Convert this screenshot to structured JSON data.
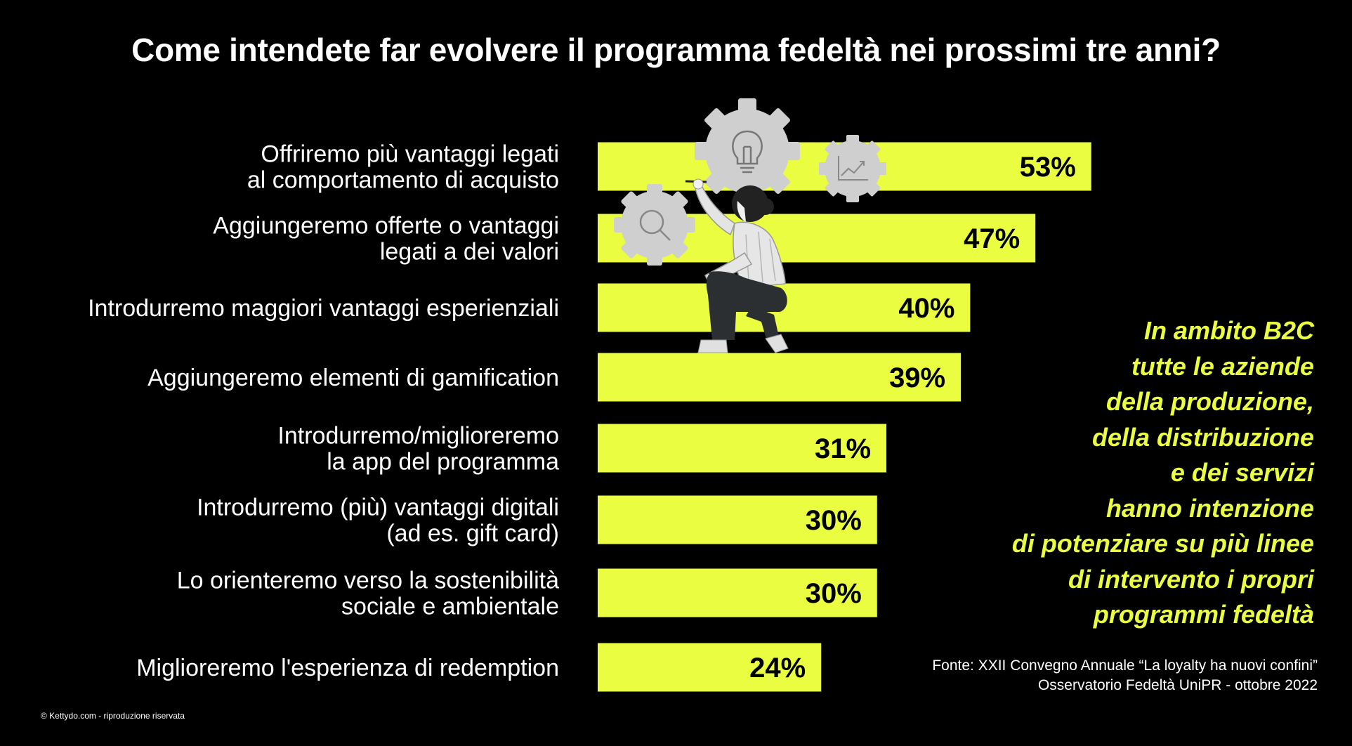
{
  "chart_data": {
    "type": "bar",
    "orientation": "horizontal",
    "title": "Come intendete far evolvere il programma fedeltà nei prossimi tre anni?",
    "categories": [
      [
        "Offriremo più vantaggi legati",
        "al comportamento di acquisto"
      ],
      [
        "Aggiungeremo offerte o vantaggi",
        "legati a dei valori"
      ],
      [
        "Introdurremo maggiori vantaggi esperienziali"
      ],
      [
        "Aggiungeremo elementi di gamification"
      ],
      [
        "Introdurremo/miglioreremo",
        "la app del programma"
      ],
      [
        "Introdurremo (più) vantaggi digitali",
        "(ad es. gift card)"
      ],
      [
        "Lo orienteremo verso la sostenibilità",
        "sociale e ambientale"
      ],
      [
        "Miglioreremo l'esperienza di redemption"
      ]
    ],
    "values": [
      53,
      47,
      40,
      39,
      31,
      30,
      30,
      24
    ],
    "data_labels": [
      "53%",
      "47%",
      "40%",
      "39%",
      "31%",
      "30%",
      "30%",
      "24%"
    ],
    "unit": "%",
    "bar_color": "#eafd41",
    "background_color": "#000000",
    "label_color": "#ffffff",
    "grid": false,
    "xlabel": "",
    "ylabel": ""
  },
  "callout": {
    "lines": [
      "In ambito B2C",
      "tutte le aziende",
      "della produzione,",
      "della distribuzione",
      "e dei servizi",
      "hanno intenzione",
      "di potenziare su più linee",
      "di intervento i propri",
      "programmi fedeltà"
    ],
    "color": "#eafd41"
  },
  "source": {
    "line1": "Fonte: XXII Convegno Annuale “La loyalty ha nuovi confini”",
    "line2": "Osservatorio Fedeltà UniPR - ottobre 2022"
  },
  "copyright": "© Kettydo.com - riproduzione riservata",
  "illustration": {
    "icons": [
      "gear-lightbulb-icon",
      "gear-chart-icon",
      "gear-magnifier-icon",
      "woman-drawing-illustration"
    ]
  }
}
